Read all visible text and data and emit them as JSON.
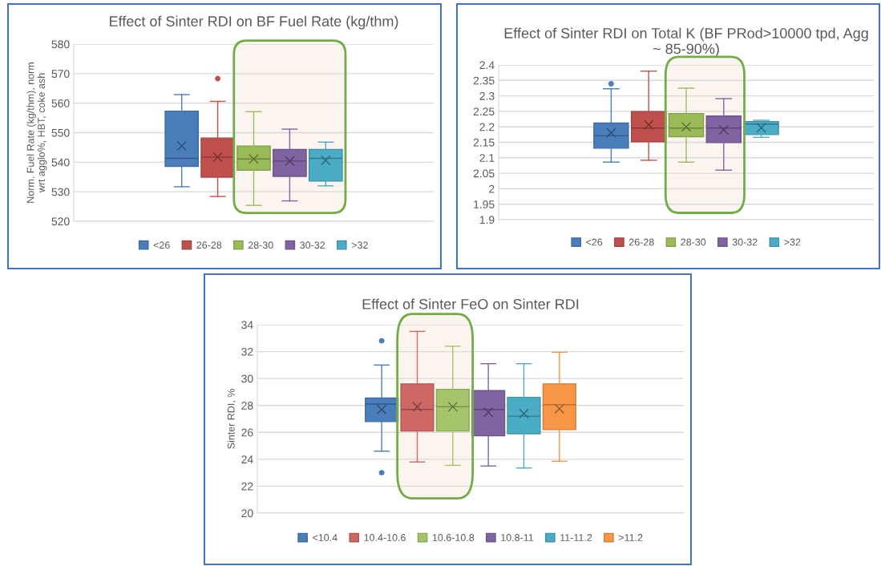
{
  "chart_data": [
    {
      "type": "box",
      "title": "Effect of Sinter RDI on BF Fuel Rate (kg/thm)",
      "ylabel": "Norm. Fuel Rate (kg/thm), norm\nwrt agglo%, HBT, coke ash",
      "categories": [
        null
      ],
      "ylim": [
        520,
        580
      ],
      "yticks": [
        520,
        530,
        540,
        550,
        560,
        570,
        580
      ],
      "grid": "y",
      "legend": "bottom",
      "tick_labels": "y",
      "series": [
        {
          "name": "<26",
          "color": "#4a7ebb",
          "boxes": [
            {
              "low": 531.7,
              "q1": 538.6,
              "median": 541.3,
              "q3": 557.3,
              "high": 562.9,
              "mean": 545.5
            }
          ]
        },
        {
          "name": "26-28",
          "color": "#c0504d",
          "boxes": [
            {
              "low": 528.4,
              "q1": 534.9,
              "median": 541.7,
              "q3": 548.2,
              "high": 560.6,
              "mean": 541.7,
              "outliers": [
                568.3
              ]
            }
          ]
        },
        {
          "name": "28-30",
          "color": "#9bbb59",
          "boxes": [
            {
              "low": 525.4,
              "q1": 537.3,
              "median": 541.1,
              "q3": 545.5,
              "high": 557.1,
              "mean": 541.1
            }
          ]
        },
        {
          "name": "30-32",
          "color": "#8064a2",
          "boxes": [
            {
              "low": 526.9,
              "q1": 535.2,
              "median": 540.4,
              "q3": 544.3,
              "high": 551.2,
              "mean": 540.4
            }
          ]
        },
        {
          "name": ">32",
          "color": "#4bacc6",
          "boxes": [
            {
              "low": 532.0,
              "q1": 533.6,
              "median": 541.3,
              "q3": 544.3,
              "high": 546.8,
              "mean": 540.6
            }
          ]
        }
      ]
    },
    {
      "type": "box",
      "title": "Effect of Sinter RDI on Total K (BF PRod>10000 tpd, Agg\n~ 85-90%)",
      "categories": [
        null
      ],
      "ylim": [
        1.9,
        2.4
      ],
      "yticks": [
        1.9,
        1.95,
        2,
        2.05,
        2.1,
        2.15,
        2.2,
        2.25,
        2.3,
        2.35,
        2.4
      ],
      "grid": "y",
      "legend": "bottom",
      "tick_labels": "y",
      "series": [
        {
          "name": "<26",
          "color": "#4a7ebb",
          "boxes": [
            {
              "low": 2.086,
              "q1": 2.131,
              "median": 2.171,
              "q3": 2.212,
              "high": 2.323,
              "mean": 2.181,
              "outliers": [
                2.339
              ]
            }
          ]
        },
        {
          "name": "26-28",
          "color": "#c0504d",
          "boxes": [
            {
              "low": 2.092,
              "q1": 2.152,
              "median": 2.196,
              "q3": 2.249,
              "high": 2.38,
              "mean": 2.207
            }
          ]
        },
        {
          "name": "28-30",
          "color": "#9bbb59",
          "boxes": [
            {
              "low": 2.086,
              "q1": 2.168,
              "median": 2.196,
              "q3": 2.243,
              "high": 2.325,
              "mean": 2.2
            }
          ]
        },
        {
          "name": "30-32",
          "color": "#8064a2",
          "boxes": [
            {
              "low": 2.06,
              "q1": 2.149,
              "median": 2.196,
              "q3": 2.235,
              "high": 2.291,
              "mean": 2.19
            }
          ]
        },
        {
          "name": ">32",
          "color": "#4bacc6",
          "boxes": [
            {
              "low": 2.166,
              "q1": 2.175,
              "median": 2.209,
              "q3": 2.217,
              "high": 2.221,
              "mean": 2.197
            }
          ]
        }
      ]
    },
    {
      "type": "box",
      "title": "Effect of Sinter FeO on Sinter RDI",
      "ylabel": "Sinter RDI, %",
      "categories": [
        null
      ],
      "ylim": [
        20,
        34
      ],
      "yticks": [
        20,
        22,
        24,
        26,
        28,
        30,
        32,
        34
      ],
      "grid": "y",
      "legend": "bottom",
      "tick_labels": "y",
      "series": [
        {
          "name": "<10.4",
          "color": "#4a7ebb",
          "boxes": [
            {
              "low": 24.6,
              "q1": 26.8,
              "median": 28.1,
              "q3": 28.55,
              "high": 31.0,
              "mean": 27.7,
              "outliers": [
                32.8,
                23.0
              ]
            }
          ]
        },
        {
          "name": "10.4-10.6",
          "color": "#cd6864",
          "boxes": [
            {
              "low": 23.8,
              "q1": 26.1,
              "median": 27.7,
              "q3": 29.6,
              "high": 33.5,
              "mean": 27.9
            }
          ]
        },
        {
          "name": "10.6-10.8",
          "color": "#a6c46a",
          "boxes": [
            {
              "low": 23.55,
              "q1": 26.1,
              "median": 27.9,
              "q3": 29.2,
              "high": 32.4,
              "mean": 27.9
            }
          ]
        },
        {
          "name": "10.8-11",
          "color": "#8064a2",
          "boxes": [
            {
              "low": 23.5,
              "q1": 25.75,
              "median": 27.7,
              "q3": 29.1,
              "high": 31.1,
              "mean": 27.5
            }
          ]
        },
        {
          "name": "11-11.2",
          "color": "#4bacc6",
          "boxes": [
            {
              "low": 23.35,
              "q1": 25.9,
              "median": 27.2,
              "q3": 28.6,
              "high": 31.1,
              "mean": 27.4
            }
          ]
        },
        {
          "name": ">11.2",
          "color": "#f79646",
          "boxes": [
            {
              "low": 23.85,
              "q1": 26.2,
              "median": 28.05,
              "q3": 29.6,
              "high": 31.95,
              "mean": 27.75
            }
          ]
        }
      ]
    }
  ]
}
